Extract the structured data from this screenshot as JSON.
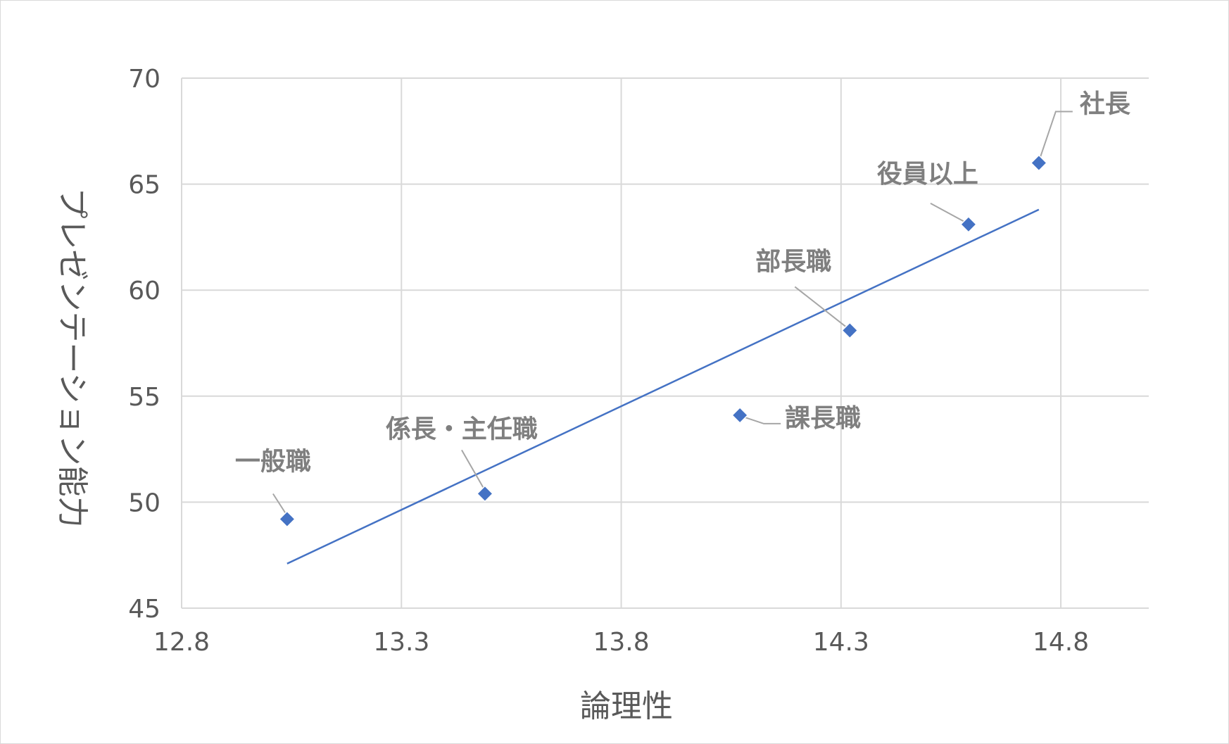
{
  "chart_data": {
    "type": "scatter",
    "xlabel": "論理性",
    "ylabel": "プレゼンテーション能力",
    "xlim": [
      12.8,
      15.0
    ],
    "ylim": [
      45,
      70
    ],
    "x_ticks": [
      12.8,
      13.3,
      13.8,
      14.3,
      14.8
    ],
    "x_tick_labels": [
      "12.8",
      "13.3",
      "13.8",
      "14.3",
      "14.8"
    ],
    "y_ticks": [
      45,
      50,
      55,
      60,
      65,
      70
    ],
    "y_tick_labels": [
      "45",
      "50",
      "55",
      "60",
      "65",
      "70"
    ],
    "grid": true,
    "marker_color": "#4472c4",
    "trendline_color": "#4472c4",
    "points": [
      {
        "label": "一般職",
        "x": 13.04,
        "y": 49.2
      },
      {
        "label": "係長・主任職",
        "x": 13.49,
        "y": 50.4
      },
      {
        "label": "課長職",
        "x": 14.07,
        "y": 54.1
      },
      {
        "label": "部長職",
        "x": 14.32,
        "y": 58.1
      },
      {
        "label": "役員以上",
        "x": 14.59,
        "y": 63.1
      },
      {
        "label": "社長",
        "x": 14.75,
        "y": 66.0
      }
    ],
    "trendline": {
      "type": "linear",
      "x": [
        13.04,
        14.75
      ],
      "y": [
        47.1,
        63.8
      ]
    }
  }
}
